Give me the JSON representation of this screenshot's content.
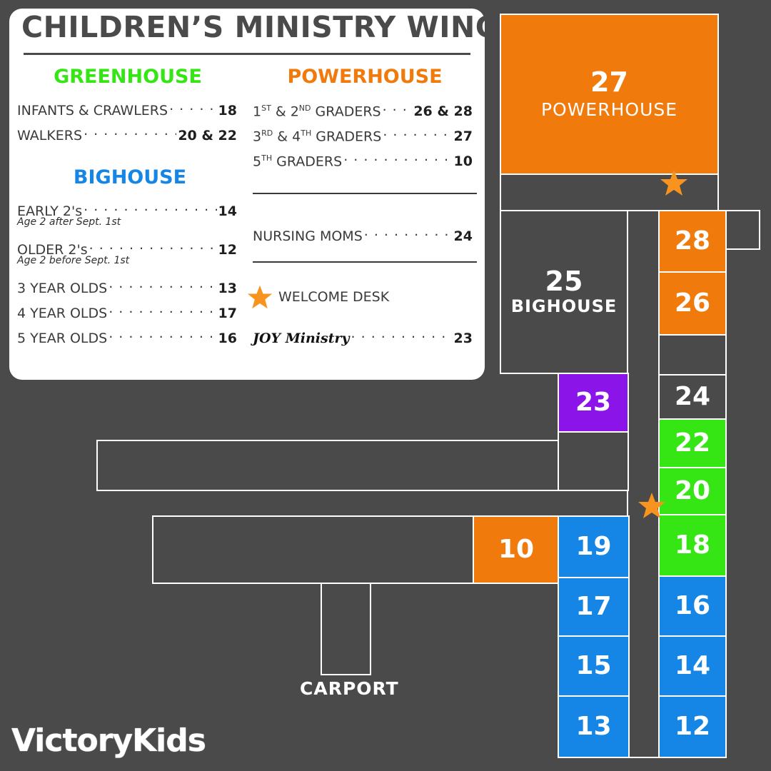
{
  "legend": {
    "title": "CHILDREN’S MINISTRY WING",
    "greenhouse": {
      "heading": "GREENHOUSE",
      "color": "#36e614",
      "rows": [
        {
          "label": "INFANTS & CRAWLERS",
          "room": "18"
        },
        {
          "label": "WALKERS",
          "room": "20 & 22"
        }
      ]
    },
    "bighouse": {
      "heading": "BIGHOUSE",
      "color": "#1586e6",
      "rows": [
        {
          "label": "EARLY 2's",
          "room": "14",
          "note": "Age 2 after Sept. 1st"
        },
        {
          "label": "OLDER 2's",
          "room": "12",
          "note": "Age 2 before Sept. 1st"
        },
        {
          "label": "3 YEAR OLDS",
          "room": "13"
        },
        {
          "label": "4 YEAR OLDS",
          "room": "17"
        },
        {
          "label": "5 YEAR OLDS",
          "room": "16"
        }
      ]
    },
    "powerhouse": {
      "heading": "POWERHOUSE",
      "color": "#f07a0c",
      "rows": [
        {
          "ord1": "1",
          "sup1": "ST",
          "amp": " & ",
          "ord2": "2",
          "sup2": "ND",
          "rest": " GRADERS",
          "room": "26 & 28"
        },
        {
          "ord1": "3",
          "sup1": "RD",
          "amp": " & ",
          "ord2": "4",
          "sup2": "TH",
          "rest": " GRADERS",
          "room": "27"
        },
        {
          "ord1": "5",
          "sup1": "TH",
          "rest": " GRADERS",
          "room": "10"
        }
      ]
    },
    "nursing": {
      "label": "NURSING MOMS",
      "room": "24"
    },
    "welcome": {
      "label": "WELCOME DESK",
      "icon": "star-icon"
    },
    "joy": {
      "label": "JOY Ministry",
      "room": "23"
    }
  },
  "map": {
    "rooms": {
      "r27": {
        "number": "27",
        "name": "POWERHOUSE",
        "color": "#f07a0c"
      },
      "r25": {
        "number": "25",
        "name": "BIGHOUSE",
        "color": "#4a4a4a"
      },
      "r28": {
        "number": "28",
        "color": "#f07a0c"
      },
      "r26": {
        "number": "26",
        "color": "#f07a0c"
      },
      "r24": {
        "number": "24",
        "color": "#4a4a4a"
      },
      "r23": {
        "number": "23",
        "color": "#8b15e8"
      },
      "r22": {
        "number": "22",
        "color": "#36e614"
      },
      "r20": {
        "number": "20",
        "color": "#36e614"
      },
      "r18": {
        "number": "18",
        "color": "#36e614"
      },
      "r16": {
        "number": "16",
        "color": "#1586e6"
      },
      "r14": {
        "number": "14",
        "color": "#1586e6"
      },
      "r12": {
        "number": "12",
        "color": "#1586e6"
      },
      "r10": {
        "number": "10",
        "color": "#f07a0c"
      },
      "r19": {
        "number": "19",
        "color": "#1586e6"
      },
      "r17": {
        "number": "17",
        "color": "#1586e6"
      },
      "r15": {
        "number": "15",
        "color": "#1586e6"
      },
      "r13": {
        "number": "13",
        "color": "#1586e6"
      }
    },
    "carport": "CARPORT",
    "star_color": "#f7931e"
  },
  "brand": {
    "logo": "VictoryKids"
  }
}
